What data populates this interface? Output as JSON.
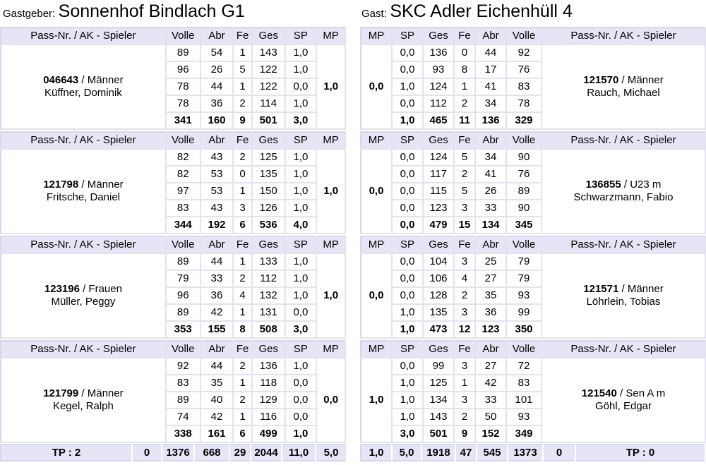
{
  "home": {
    "label": "Gastgeber:",
    "name": "Sonnenhof Bindlach G1"
  },
  "guest": {
    "label": "Gast:",
    "name": "SKC Adler Eichenhüll 4"
  },
  "columns": {
    "home": [
      "Pass-Nr. / AK - Spieler",
      "Volle",
      "Abr",
      "Fe",
      "Ges",
      "SP",
      "MP"
    ],
    "guest": [
      "MP",
      "SP",
      "Ges",
      "Fe",
      "Abr",
      "Volle",
      "Pass-Nr. / AK - Spieler"
    ]
  },
  "pairings": [
    {
      "home": {
        "pass": "046643",
        "ak": " / Männer",
        "name": "Küffner, Dominik",
        "mp": "1,0",
        "rows": [
          [
            "89",
            "54",
            "1",
            "143",
            "1,0"
          ],
          [
            "96",
            "26",
            "5",
            "122",
            "1,0"
          ],
          [
            "78",
            "44",
            "1",
            "122",
            "0,0"
          ],
          [
            "78",
            "36",
            "2",
            "114",
            "1,0"
          ]
        ],
        "sum": [
          "341",
          "160",
          "9",
          "501",
          "3,0"
        ]
      },
      "guest": {
        "pass": "121570",
        "ak": " / Männer",
        "name": "Rauch, Michael",
        "mp": "0,0",
        "rows": [
          [
            "0,0",
            "136",
            "0",
            "44",
            "92"
          ],
          [
            "0,0",
            "93",
            "8",
            "17",
            "76"
          ],
          [
            "1,0",
            "124",
            "1",
            "41",
            "83"
          ],
          [
            "0,0",
            "112",
            "2",
            "34",
            "78"
          ]
        ],
        "sum": [
          "1,0",
          "465",
          "11",
          "136",
          "329"
        ]
      }
    },
    {
      "home": {
        "pass": "121798",
        "ak": " / Männer",
        "name": "Fritsche, Daniel",
        "mp": "1,0",
        "rows": [
          [
            "82",
            "43",
            "2",
            "125",
            "1,0"
          ],
          [
            "82",
            "53",
            "0",
            "135",
            "1,0"
          ],
          [
            "97",
            "53",
            "1",
            "150",
            "1,0"
          ],
          [
            "83",
            "43",
            "3",
            "126",
            "1,0"
          ]
        ],
        "sum": [
          "344",
          "192",
          "6",
          "536",
          "4,0"
        ]
      },
      "guest": {
        "pass": "136855",
        "ak": " / U23 m",
        "name": "Schwarzmann, Fabio",
        "mp": "0,0",
        "rows": [
          [
            "0,0",
            "124",
            "5",
            "34",
            "90"
          ],
          [
            "0,0",
            "117",
            "2",
            "41",
            "76"
          ],
          [
            "0,0",
            "115",
            "5",
            "26",
            "89"
          ],
          [
            "0,0",
            "123",
            "3",
            "33",
            "90"
          ]
        ],
        "sum": [
          "0,0",
          "479",
          "15",
          "134",
          "345"
        ]
      }
    },
    {
      "home": {
        "pass": "123196",
        "ak": " / Frauen",
        "name": "Müller, Peggy",
        "mp": "1,0",
        "rows": [
          [
            "89",
            "44",
            "1",
            "133",
            "1,0"
          ],
          [
            "79",
            "33",
            "2",
            "112",
            "1,0"
          ],
          [
            "96",
            "36",
            "4",
            "132",
            "1,0"
          ],
          [
            "89",
            "42",
            "1",
            "131",
            "0,0"
          ]
        ],
        "sum": [
          "353",
          "155",
          "8",
          "508",
          "3,0"
        ]
      },
      "guest": {
        "pass": "121571",
        "ak": " / Männer",
        "name": "Löhrlein, Tobias",
        "mp": "0,0",
        "rows": [
          [
            "0,0",
            "104",
            "3",
            "25",
            "79"
          ],
          [
            "0,0",
            "106",
            "4",
            "27",
            "79"
          ],
          [
            "0,0",
            "128",
            "2",
            "35",
            "93"
          ],
          [
            "1,0",
            "135",
            "3",
            "36",
            "99"
          ]
        ],
        "sum": [
          "1,0",
          "473",
          "12",
          "123",
          "350"
        ]
      }
    },
    {
      "home": {
        "pass": "121799",
        "ak": " / Männer",
        "name": "Kegel, Ralph",
        "mp": "0,0",
        "rows": [
          [
            "92",
            "44",
            "2",
            "136",
            "1,0"
          ],
          [
            "83",
            "35",
            "1",
            "118",
            "0,0"
          ],
          [
            "89",
            "40",
            "2",
            "129",
            "0,0"
          ],
          [
            "74",
            "42",
            "1",
            "116",
            "0,0"
          ]
        ],
        "sum": [
          "338",
          "161",
          "6",
          "499",
          "1,0"
        ]
      },
      "guest": {
        "pass": "121540",
        "ak": " / Sen A m",
        "name": "Göhl, Edgar",
        "mp": "1,0",
        "rows": [
          [
            "0,0",
            "99",
            "3",
            "27",
            "72"
          ],
          [
            "1,0",
            "125",
            "1",
            "42",
            "83"
          ],
          [
            "1,0",
            "134",
            "3",
            "33",
            "101"
          ],
          [
            "1,0",
            "143",
            "2",
            "50",
            "93"
          ]
        ],
        "sum": [
          "3,0",
          "501",
          "9",
          "152",
          "349"
        ]
      }
    }
  ],
  "totals": {
    "home": [
      "TP : 2",
      "0",
      "1376",
      "668",
      "29",
      "2044",
      "11,0",
      "5,0"
    ],
    "guest": [
      "1,0",
      "5,0",
      "1918",
      "47",
      "545",
      "1373",
      "0",
      "TP : 0"
    ]
  }
}
